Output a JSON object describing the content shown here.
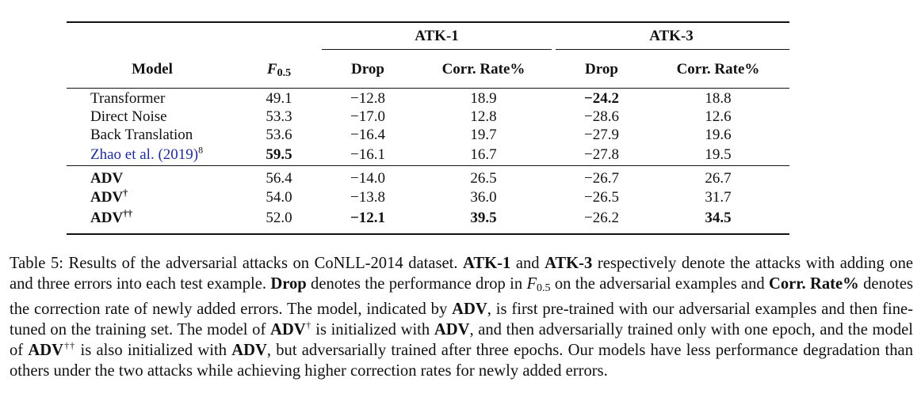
{
  "table": {
    "group_headers": [
      "ATK-1",
      "ATK-3"
    ],
    "columns": [
      "Model",
      "F",
      "0.5",
      "Drop",
      "Corr. Rate%",
      "Drop",
      "Corr. Rate%"
    ],
    "rows": [
      [
        "Transformer",
        "49.1",
        "−12.8",
        "18.9",
        "−24.2",
        "18.8"
      ],
      [
        "Direct Noise",
        "53.3",
        "−17.0",
        "12.8",
        "−28.6",
        "12.6"
      ],
      [
        "Back Translation",
        "53.6",
        "−16.4",
        "19.7",
        "−27.9",
        "19.6"
      ],
      [
        "Zhao et al. (2019)",
        "59.5",
        "−16.1",
        "16.7",
        "−27.8",
        "19.5"
      ],
      [
        "ADV",
        "56.4",
        "−14.0",
        "26.5",
        "−26.7",
        "26.7"
      ],
      [
        "ADV",
        "54.0",
        "−13.8",
        "36.0",
        "−26.5",
        "31.7"
      ],
      [
        "ADV",
        "52.0",
        "−12.1",
        "39.5",
        "−26.2",
        "34.5"
      ]
    ],
    "row_suffixes": [
      "",
      "",
      "",
      "8",
      "",
      "†",
      "††"
    ]
  },
  "caption": {
    "p1": "Table 5:  Results of the adversarial attacks on CoNLL-2014 dataset. ",
    "b1": "ATK-1",
    "p2": " and ",
    "b2": "ATK-3",
    "p3": " respectively denote the attacks with adding one and three errors into each test example. ",
    "b3": "Drop",
    "p4": " denotes the performance drop in ",
    "f_letter": "F",
    "f_sub": "0.5",
    "p5": " on the adversarial examples and ",
    "b4": "Corr. Rate%",
    "p6": " denotes the correction rate of newly added errors. The model, indicated by ",
    "b5": "ADV",
    "p7": ", is first pre-trained with our adversarial examples and then fine-tuned on the training set. The model of ",
    "b6": "ADV",
    "s6": "†",
    "p8": " is initialized with ",
    "b7": "ADV",
    "p9": ", and then adversarially trained only with one epoch, and the model of ",
    "b8": "ADV",
    "s8": "††",
    "p10": " is also initialized with ",
    "b9": "ADV",
    "p11": ", but adversarially trained after three epochs. Our models have less performance degradation than others under the two attacks while achieving higher correction rates for newly added errors."
  }
}
